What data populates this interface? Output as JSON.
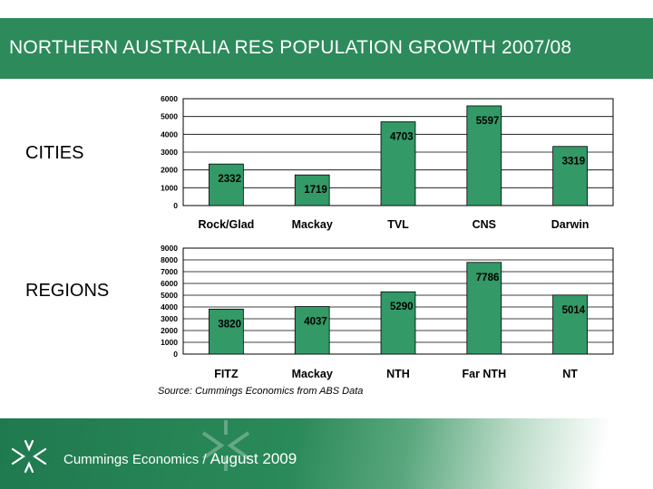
{
  "header": {
    "title": "NORTHERN AUSTRALIA RES POPULATION GROWTH 2007/08"
  },
  "labels": {
    "cities": "CITIES",
    "regions": "REGIONS"
  },
  "source": "Source: Cummings Economics from ABS Data",
  "footer": {
    "company": "Cummings Economics / ",
    "date": "August 2009"
  },
  "colors": {
    "brand": "#2d8a5a",
    "bar": "#339966"
  },
  "chart_data": [
    {
      "type": "bar",
      "categories": [
        "Rock/Glad",
        "Mackay",
        "TVL",
        "CNS",
        "Darwin"
      ],
      "values": [
        2332,
        1719,
        4703,
        5597,
        3319
      ],
      "ylim": [
        0,
        6000
      ],
      "yticks": [
        0,
        1000,
        2000,
        3000,
        4000,
        5000,
        6000
      ],
      "grid": true
    },
    {
      "type": "bar",
      "categories": [
        "FITZ",
        "Mackay",
        "NTH",
        "Far NTH",
        "NT"
      ],
      "values": [
        3820,
        4037,
        5290,
        7786,
        5014
      ],
      "ylim": [
        0,
        9000
      ],
      "yticks": [
        0,
        1000,
        2000,
        3000,
        4000,
        5000,
        6000,
        7000,
        8000,
        9000
      ],
      "grid": true
    }
  ]
}
